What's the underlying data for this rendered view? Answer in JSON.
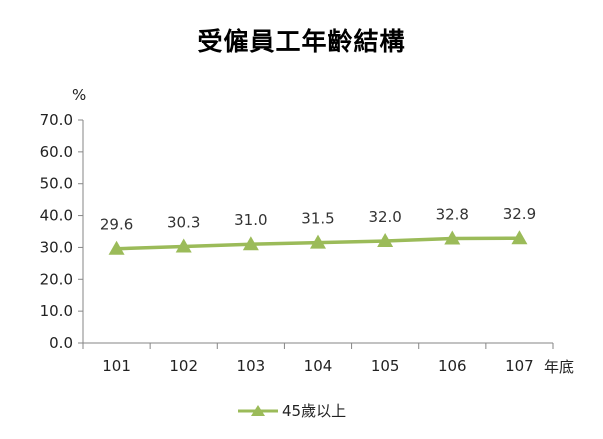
{
  "title": "受僱員工年齡結構",
  "chart_data": {
    "type": "line",
    "categories": [
      "101",
      "102",
      "103",
      "104",
      "105",
      "106",
      "107"
    ],
    "series": [
      {
        "name": "45歲以上",
        "values": [
          29.6,
          30.3,
          31.0,
          31.5,
          32.0,
          32.8,
          32.9
        ],
        "color": "#9bbb59"
      }
    ],
    "data_labels": [
      "29.6",
      "30.3",
      "31.0",
      "31.5",
      "32.0",
      "32.8",
      "32.9"
    ],
    "ylabel": "%",
    "xlabel": "年底",
    "ylim": [
      0,
      70
    ],
    "yticks": [
      "0.0",
      "10.0",
      "20.0",
      "30.0",
      "40.0",
      "50.0",
      "60.0",
      "70.0"
    ],
    "grid": false,
    "legend_position": "bottom",
    "marker": "triangle"
  }
}
